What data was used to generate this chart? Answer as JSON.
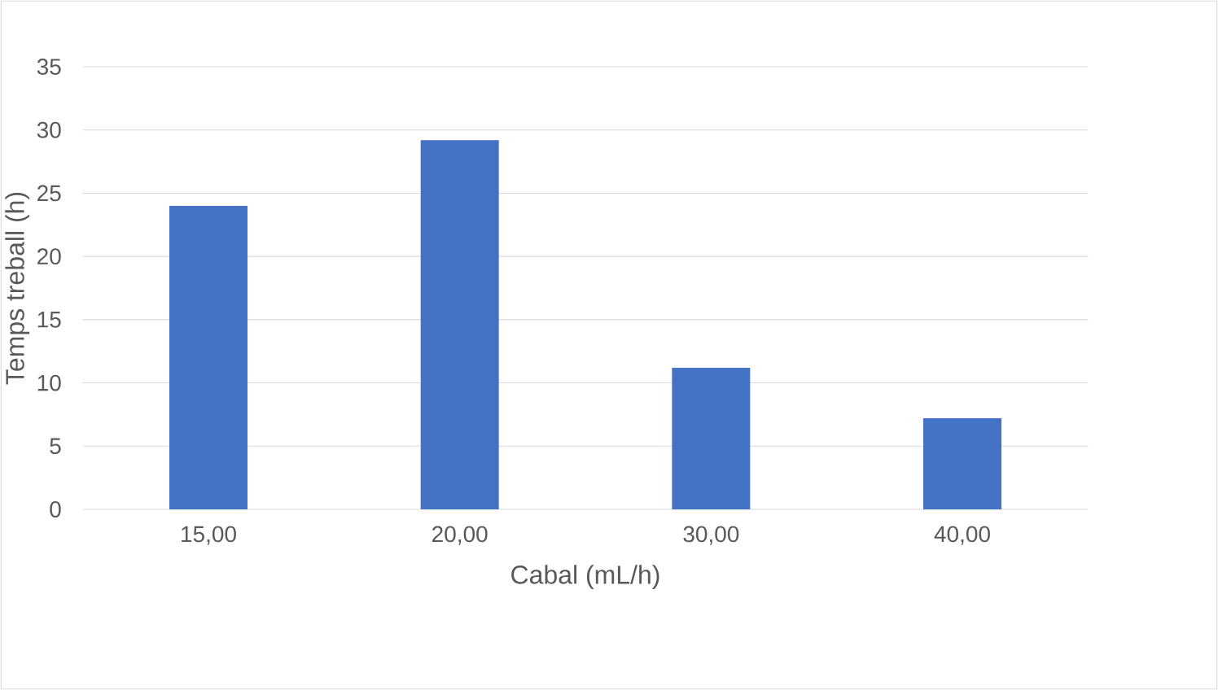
{
  "chart_data": {
    "type": "bar",
    "xlabel": "Cabal (mL/h)",
    "ylabel": "Temps treball (h)",
    "categories": [
      "15,00",
      "20,00",
      "30,00",
      "40,00"
    ],
    "values": [
      24,
      29.2,
      11.2,
      7.2
    ],
    "color": "#4472c4",
    "ylim": [
      0,
      35
    ],
    "yticks": [
      0,
      5,
      10,
      15,
      20,
      25,
      30,
      35
    ],
    "grid": "y"
  }
}
